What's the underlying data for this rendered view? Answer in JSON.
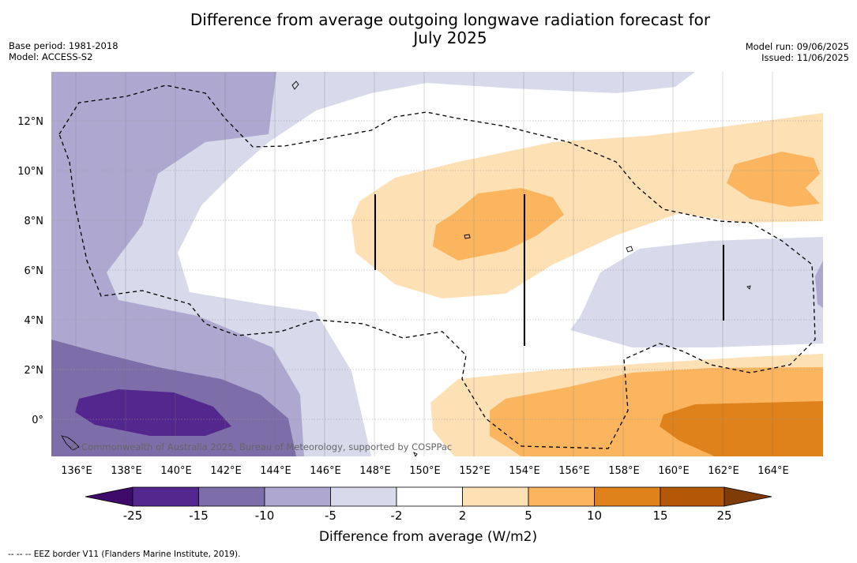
{
  "title_line1": "Difference from average outgoing longwave radiation forecast for",
  "title_line2": "July 2025",
  "base_period": "Base period: 1981-2018",
  "model": "Model: ACCESS-S2",
  "model_run": "Model run: 09/06/2025",
  "issued": "Issued: 11/06/2025",
  "copyright": "© Commonwealth of Australia 2025, Bureau of Meteorology, supported by COSPPac",
  "footnote": "--  --  -- EEZ border V11 (Flanders Marine Institute, 2019).",
  "lat_labels": [
    "12°N",
    "10°N",
    "8°N",
    "6°N",
    "4°N",
    "2°N",
    "0°"
  ],
  "lon_labels": [
    "136°E",
    "138°E",
    "140°E",
    "142°E",
    "144°E",
    "146°E",
    "148°E",
    "150°E",
    "152°E",
    "154°E",
    "156°E",
    "158°E",
    "160°E",
    "162°E",
    "164°E"
  ],
  "colorbar": {
    "title": "Difference from average (W/m2)",
    "ticks": [
      "-25",
      "-15",
      "-10",
      "-5",
      "-2",
      "2",
      "5",
      "10",
      "15",
      "25"
    ],
    "colors": [
      "#3f0b6a",
      "#54278f",
      "#7d6eaa",
      "#aea8d1",
      "#d8d9ea",
      "#ffffff",
      "#fde0b4",
      "#fbb55f",
      "#e0821b",
      "#b35806",
      "#7f3b08"
    ]
  }
}
